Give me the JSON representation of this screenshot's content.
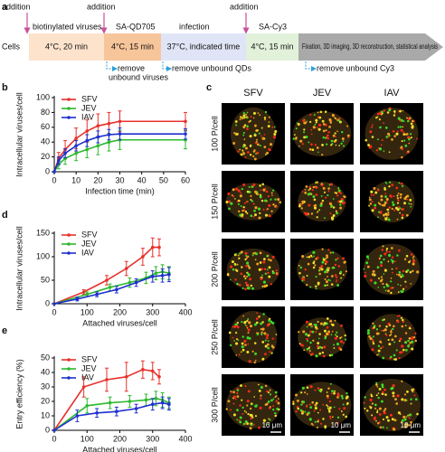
{
  "panel_a": {
    "label": "a",
    "cells": "Cells",
    "additions": [
      "addition",
      "addition",
      "addition"
    ],
    "reagents": [
      "biotinylated viruses",
      "SA-QD705",
      "infection",
      "SA-Cy3"
    ],
    "stages": [
      "4°C, 20 min",
      "4°C, 15 min",
      "37°C, indicated time",
      "4°C, 15 min",
      "Fixation, 3D imaging, 3D reconstruction, statistical analysis"
    ],
    "washes": [
      [
        "remove",
        "unbound viruses"
      ],
      [
        "remove unbound QDs"
      ],
      [
        "remove unbound Cy3"
      ]
    ]
  },
  "panel_c": {
    "label": "c",
    "columns": [
      "SFV",
      "JEV",
      "IAV"
    ],
    "rows": [
      "100 P/cell",
      "150 P/cell",
      "200 P/cell",
      "250 P/cell",
      "300 P/cell"
    ],
    "scale_bar": "10 μm"
  },
  "chart_data": [
    {
      "type": "line",
      "label": "b",
      "xlabel": "Infection time (min)",
      "ylabel": "Intracellular viruses/cell",
      "xlim": [
        0,
        60
      ],
      "xticks": [
        0,
        10,
        20,
        30,
        40,
        50,
        60
      ],
      "ylim": [
        0,
        100
      ],
      "yticks": [
        0,
        20,
        40,
        60,
        80,
        100
      ],
      "legend": "upper left",
      "series": [
        {
          "name": "SFV",
          "color": "#e8302a",
          "x": [
            0,
            2,
            5,
            10,
            15,
            20,
            25,
            30,
            60
          ],
          "values": [
            0,
            18,
            30,
            45,
            55,
            62,
            65,
            68,
            68
          ],
          "errors": [
            0,
            8,
            12,
            14,
            15,
            16,
            15,
            14,
            12
          ]
        },
        {
          "name": "JEV",
          "color": "#2db82d",
          "x": [
            0,
            2,
            5,
            10,
            15,
            20,
            25,
            30,
            60
          ],
          "values": [
            0,
            10,
            18,
            25,
            30,
            35,
            40,
            43,
            43
          ],
          "errors": [
            0,
            6,
            8,
            10,
            11,
            12,
            12,
            13,
            12
          ]
        },
        {
          "name": "IAV",
          "color": "#1e2fcf",
          "x": [
            0,
            2,
            5,
            10,
            15,
            20,
            25,
            30,
            60
          ],
          "values": [
            0,
            15,
            25,
            35,
            42,
            47,
            50,
            51,
            51
          ],
          "errors": [
            0,
            5,
            6,
            7,
            8,
            8,
            7,
            8,
            7
          ]
        }
      ]
    },
    {
      "type": "line",
      "label": "d",
      "xlabel": "Attached viruses/cell",
      "ylabel": "Intracellular viruses/cell",
      "xlim": [
        0,
        400
      ],
      "xticks": [
        0,
        100,
        200,
        300,
        400
      ],
      "ylim": [
        0,
        150
      ],
      "yticks": [
        0,
        50,
        100,
        150
      ],
      "legend": "upper left",
      "series": [
        {
          "name": "SFV",
          "color": "#e8302a",
          "x": [
            0,
            90,
            160,
            220,
            270,
            300,
            320
          ],
          "values": [
            0,
            25,
            50,
            75,
            100,
            120,
            120
          ],
          "errors": [
            0,
            5,
            10,
            15,
            18,
            20,
            18
          ]
        },
        {
          "name": "JEV",
          "color": "#2db82d",
          "x": [
            0,
            100,
            170,
            230,
            280,
            310,
            330,
            350
          ],
          "values": [
            0,
            20,
            35,
            45,
            55,
            65,
            68,
            65
          ],
          "errors": [
            0,
            5,
            7,
            10,
            12,
            14,
            15,
            14
          ]
        },
        {
          "name": "IAV",
          "color": "#1e2fcf",
          "x": [
            0,
            70,
            130,
            190,
            250,
            300,
            330,
            350
          ],
          "values": [
            0,
            10,
            20,
            30,
            45,
            58,
            60,
            62
          ],
          "errors": [
            0,
            4,
            5,
            7,
            8,
            12,
            14,
            15
          ]
        }
      ]
    },
    {
      "type": "line",
      "label": "e",
      "xlabel": "Attached viruses/cell",
      "ylabel": "Entry efficiency (%)",
      "xlim": [
        0,
        400
      ],
      "xticks": [
        0,
        100,
        200,
        300,
        400
      ],
      "ylim": [
        0,
        50
      ],
      "yticks": [
        0,
        10,
        20,
        30,
        40,
        50
      ],
      "legend": "upper left",
      "series": [
        {
          "name": "SFV",
          "color": "#e8302a",
          "x": [
            0,
            90,
            160,
            220,
            270,
            300,
            320
          ],
          "values": [
            0,
            30,
            35,
            37,
            42,
            41,
            37
          ],
          "errors": [
            0,
            7,
            8,
            10,
            6,
            6,
            5
          ]
        },
        {
          "name": "JEV",
          "color": "#2db82d",
          "x": [
            0,
            100,
            170,
            230,
            280,
            310,
            330,
            350
          ],
          "values": [
            0,
            17,
            19,
            20,
            21,
            22,
            21,
            19
          ],
          "errors": [
            0,
            5,
            4,
            4,
            4,
            5,
            5,
            4
          ]
        },
        {
          "name": "IAV",
          "color": "#1e2fcf",
          "x": [
            0,
            70,
            130,
            190,
            250,
            300,
            330,
            350
          ],
          "values": [
            0,
            10,
            12,
            13,
            15,
            18,
            19,
            18
          ],
          "errors": [
            0,
            4,
            3,
            3,
            3,
            4,
            4,
            4
          ]
        }
      ]
    }
  ]
}
